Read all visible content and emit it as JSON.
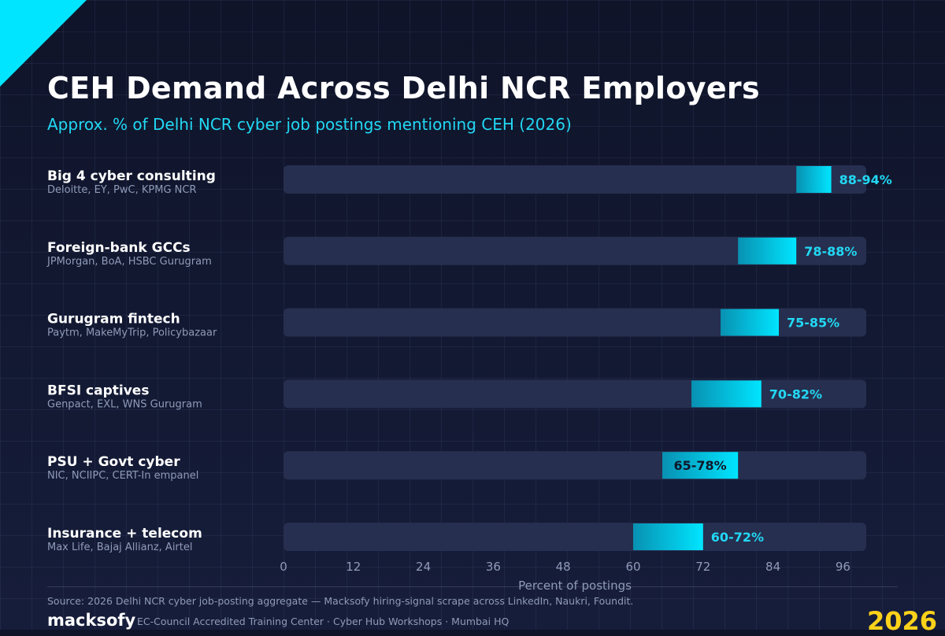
{
  "title": "CEH Demand Across Delhi NCR Employers",
  "subtitle": "Approx. % of Delhi NCR cyber job postings mentioning CEH (2026)",
  "chart_data": {
    "type": "bar",
    "orientation": "horizontal",
    "style": "range",
    "categories": [
      {
        "label": "Big 4 cyber consulting",
        "sublabel": "Deloitte, EY, PwC, KPMG NCR",
        "low": 88,
        "high": 94,
        "value_label": "88-94%"
      },
      {
        "label": "Foreign-bank GCCs",
        "sublabel": "JPMorgan, BoA, HSBC Gurugram",
        "low": 78,
        "high": 88,
        "value_label": "78-88%"
      },
      {
        "label": "Gurugram fintech",
        "sublabel": "Paytm, MakeMyTrip, Policybazaar",
        "low": 75,
        "high": 85,
        "value_label": "75-85%"
      },
      {
        "label": "BFSI captives",
        "sublabel": "Genpact, EXL, WNS Gurugram",
        "low": 70,
        "high": 82,
        "value_label": "70-82%"
      },
      {
        "label": "PSU + Govt cyber",
        "sublabel": "NIC, NCIIPC, CERT-In empanel",
        "low": 65,
        "high": 78,
        "value_label": "65-78%"
      },
      {
        "label": "Insurance + telecom",
        "sublabel": "Max Life, Bajaj Allianz, Airtel",
        "low": 60,
        "high": 72,
        "value_label": "60-72%"
      }
    ],
    "xlabel": "Percent of postings",
    "xlim": [
      0,
      100
    ],
    "xticks": [
      0,
      12,
      24,
      36,
      48,
      60,
      72,
      84,
      96
    ],
    "colors": {
      "bar_start": "#0891b2",
      "bar_end": "#00e5ff",
      "track": "#262f4f",
      "value_label": "#22d8f4",
      "inside_label": "#0f172a"
    }
  },
  "footer": {
    "source": "Source: 2026 Delhi NCR cyber job-posting aggregate — Macksofy hiring-signal scrape across LinkedIn, Naukri, Foundit.",
    "brand": "macksofy",
    "tagline": "EC-Council Accredited Training Center · Cyber Hub Workshops · Mumbai HQ",
    "year": "2026"
  },
  "colors": {
    "accent": "#00e5ff",
    "year": "#ffd21a",
    "background": "#111731"
  }
}
